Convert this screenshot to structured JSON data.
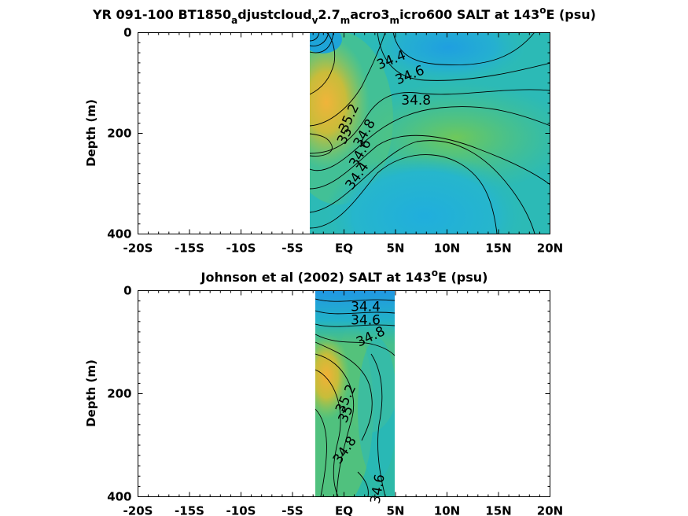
{
  "chart_data": [
    {
      "type": "heatmap",
      "title_parts": [
        "YR 091-100 BT1850",
        "a",
        "djustcloud",
        "v",
        "2.7",
        "m",
        "acro3",
        "m",
        "icro600 SALT at 143",
        "o",
        "E (psu)"
      ],
      "xlabel": "",
      "ylabel": "Depth (m)",
      "xlim": [
        -20,
        20
      ],
      "ylim": [
        400,
        0
      ],
      "xticks": [
        "-20S",
        "-15S",
        "-10S",
        "-5S",
        "EQ",
        "5N",
        "10N",
        "15N",
        "20N"
      ],
      "xtick_values": [
        -20,
        -15,
        -10,
        -5,
        0,
        5,
        10,
        15,
        20
      ],
      "yticks": [
        "0",
        "200",
        "400"
      ],
      "ytick_values": [
        0,
        200,
        400
      ],
      "data_extent_lat": [
        -3.5,
        20
      ],
      "contour_labels": [
        {
          "text": "34.4",
          "lat": 4.6,
          "depth": 55,
          "angle": -22
        },
        {
          "text": "34.6",
          "lat": 6.4,
          "depth": 85,
          "angle": -22
        },
        {
          "text": "34.8",
          "lat": 7.0,
          "depth": 135,
          "angle": 0
        },
        {
          "text": "35.2",
          "lat": 0.5,
          "depth": 170,
          "angle": -65
        },
        {
          "text": "35",
          "lat": 0.1,
          "depth": 205,
          "angle": -65
        },
        {
          "text": "34.8",
          "lat": 2.0,
          "depth": 200,
          "angle": -60
        },
        {
          "text": "34.6",
          "lat": 1.6,
          "depth": 240,
          "angle": -60
        },
        {
          "text": "34.4",
          "lat": 1.3,
          "depth": 285,
          "angle": -55
        }
      ]
    },
    {
      "type": "heatmap",
      "title_parts": [
        "Johnson et al (2002) SALT at 143",
        "o",
        "E (psu)"
      ],
      "xlabel": "",
      "ylabel": "Depth (m)",
      "xlim": [
        -20,
        20
      ],
      "ylim": [
        400,
        0
      ],
      "xticks": [
        "-20S",
        "-15S",
        "-10S",
        "-5S",
        "EQ",
        "5N",
        "10N",
        "15N",
        "20N"
      ],
      "xtick_values": [
        -20,
        -15,
        -10,
        -5,
        0,
        5,
        10,
        15,
        20
      ],
      "yticks": [
        "0",
        "200",
        "400"
      ],
      "ytick_values": [
        0,
        200,
        400
      ],
      "data_extent_lat": [
        -3,
        5
      ],
      "contour_labels": [
        {
          "text": "34.4",
          "lat": 2.1,
          "depth": 32,
          "angle": 0
        },
        {
          "text": "34.6",
          "lat": 2.1,
          "depth": 58,
          "angle": 0
        },
        {
          "text": "34.8",
          "lat": 2.6,
          "depth": 90,
          "angle": -25
        },
        {
          "text": "35.2",
          "lat": 0.2,
          "depth": 210,
          "angle": -65
        },
        {
          "text": "35",
          "lat": 0.2,
          "depth": 240,
          "angle": -65
        },
        {
          "text": "34.8",
          "lat": 0.1,
          "depth": 310,
          "angle": -55
        },
        {
          "text": "34.6",
          "lat": 3.3,
          "depth": 385,
          "angle": -80
        }
      ]
    }
  ],
  "colors": {
    "axis": "#000000",
    "background": "#ffffff",
    "low_salinity": "#1fa3dc",
    "mid_salinity": "#23b9a6",
    "high_salinity": "#7ccc59",
    "max_salinity": "#efb237"
  }
}
